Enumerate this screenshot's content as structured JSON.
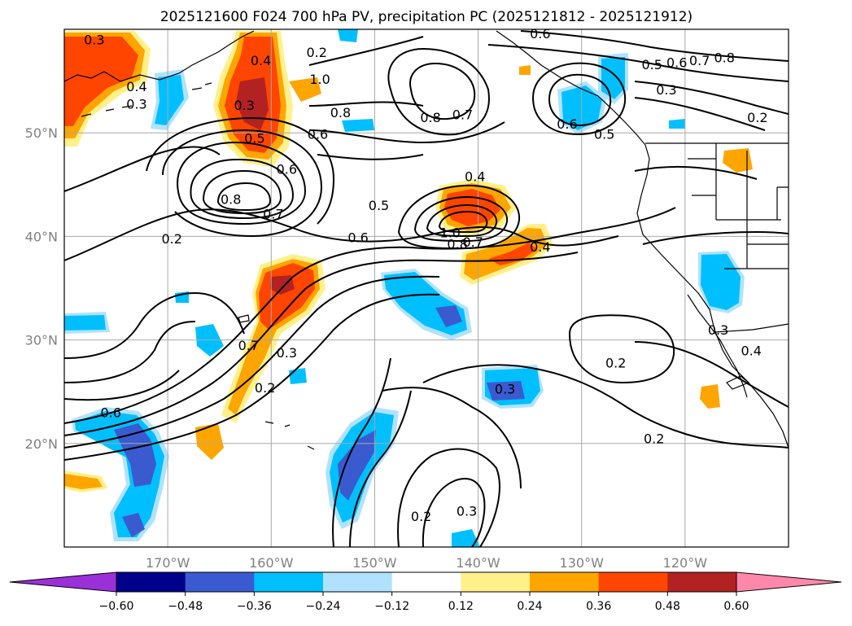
{
  "title": "2025121600 F024 700 hPa PV, precipitation PC (2025121812 - 2025121912)",
  "map": {
    "lat_range": [
      10,
      60
    ],
    "lon_range": [
      -180,
      -110
    ],
    "lat_ticks": [
      {
        "lat": 50,
        "label": "50°N"
      },
      {
        "lat": 40,
        "label": "40°N"
      },
      {
        "lat": 30,
        "label": "30°N"
      },
      {
        "lat": 20,
        "label": "20°N"
      }
    ],
    "lon_ticks": [
      {
        "lon": -170,
        "label": "170°W"
      },
      {
        "lon": -160,
        "label": "160°W"
      },
      {
        "lon": -150,
        "label": "150°W"
      },
      {
        "lon": -140,
        "label": "140°W"
      },
      {
        "lon": -130,
        "label": "130°W"
      },
      {
        "lon": -120,
        "label": "120°W"
      }
    ],
    "gridlines": true
  },
  "colorbar": {
    "colors": [
      "#9b30d9",
      "#00008b",
      "#3a5bd0",
      "#00bfff",
      "#b0e2ff",
      "#ffffff",
      "#fff08a",
      "#ffa500",
      "#ff4500",
      "#b22222",
      "#ff88aa"
    ],
    "labels": [
      "−0.60",
      "−0.48",
      "−0.36",
      "−0.24",
      "−0.12",
      "0.12",
      "0.24",
      "0.36",
      "0.48",
      "0.60"
    ]
  },
  "contour_labels": [
    {
      "text": "0.3",
      "lon": -177.1,
      "lat": 59.0
    },
    {
      "text": "0.4",
      "lon": -173.0,
      "lat": 54.5
    },
    {
      "text": "0.3",
      "lon": -173.0,
      "lat": 52.8
    },
    {
      "text": "0.4",
      "lon": -161.0,
      "lat": 57.0
    },
    {
      "text": "0.3",
      "lon": -162.6,
      "lat": 52.7
    },
    {
      "text": "0.5",
      "lon": -161.6,
      "lat": 49.5
    },
    {
      "text": "0.2",
      "lon": -155.6,
      "lat": 57.8
    },
    {
      "text": "1.0",
      "lon": -155.3,
      "lat": 55.2
    },
    {
      "text": "0.8",
      "lon": -153.3,
      "lat": 52.0
    },
    {
      "text": "0.6",
      "lon": -155.5,
      "lat": 49.9
    },
    {
      "text": "0.6",
      "lon": -158.5,
      "lat": 46.5
    },
    {
      "text": "0.8",
      "lon": -163.9,
      "lat": 43.6
    },
    {
      "text": "0.7",
      "lon": -159.8,
      "lat": 42.2
    },
    {
      "text": "0.5",
      "lon": -149.6,
      "lat": 43.0
    },
    {
      "text": "0.6",
      "lon": -151.6,
      "lat": 39.9
    },
    {
      "text": "0.2",
      "lon": -169.6,
      "lat": 39.8
    },
    {
      "text": "0.8",
      "lon": -144.6,
      "lat": 51.5
    },
    {
      "text": "0.7",
      "lon": -141.5,
      "lat": 51.8
    },
    {
      "text": "0.6",
      "lon": -134.0,
      "lat": 59.6
    },
    {
      "text": "0.4",
      "lon": -140.3,
      "lat": 45.8
    },
    {
      "text": "1.0",
      "lon": -142.7,
      "lat": 40.4
    },
    {
      "text": "0.8",
      "lon": -142.0,
      "lat": 39.3
    },
    {
      "text": "0.7",
      "lon": -140.5,
      "lat": 39.5
    },
    {
      "text": "0.4",
      "lon": -134.0,
      "lat": 39.0
    },
    {
      "text": "0.6",
      "lon": -131.4,
      "lat": 50.9
    },
    {
      "text": "0.5",
      "lon": -127.8,
      "lat": 49.9
    },
    {
      "text": "0.5",
      "lon": -123.2,
      "lat": 56.6
    },
    {
      "text": "0.6",
      "lon": -120.8,
      "lat": 56.8
    },
    {
      "text": "0.7",
      "lon": -118.6,
      "lat": 57.0
    },
    {
      "text": "0.8",
      "lon": -116.2,
      "lat": 57.3
    },
    {
      "text": "0.3",
      "lon": -121.8,
      "lat": 54.2
    },
    {
      "text": "0.2",
      "lon": -113.0,
      "lat": 51.5
    },
    {
      "text": "0.7",
      "lon": -162.2,
      "lat": 29.5
    },
    {
      "text": "0.3",
      "lon": -158.5,
      "lat": 28.8
    },
    {
      "text": "0.2",
      "lon": -160.6,
      "lat": 25.4
    },
    {
      "text": "0.6",
      "lon": -175.5,
      "lat": 23.0
    },
    {
      "text": "0.3",
      "lon": -137.4,
      "lat": 25.3
    },
    {
      "text": "0.2",
      "lon": -126.7,
      "lat": 27.8
    },
    {
      "text": "0.2",
      "lon": -123.0,
      "lat": 20.5
    },
    {
      "text": "0.2",
      "lon": -145.5,
      "lat": 13.0
    },
    {
      "text": "0.3",
      "lon": -141.1,
      "lat": 13.5
    },
    {
      "text": "0.3",
      "lon": -116.8,
      "lat": 31.0
    },
    {
      "text": "0.4",
      "lon": -113.6,
      "lat": 29.0
    }
  ]
}
